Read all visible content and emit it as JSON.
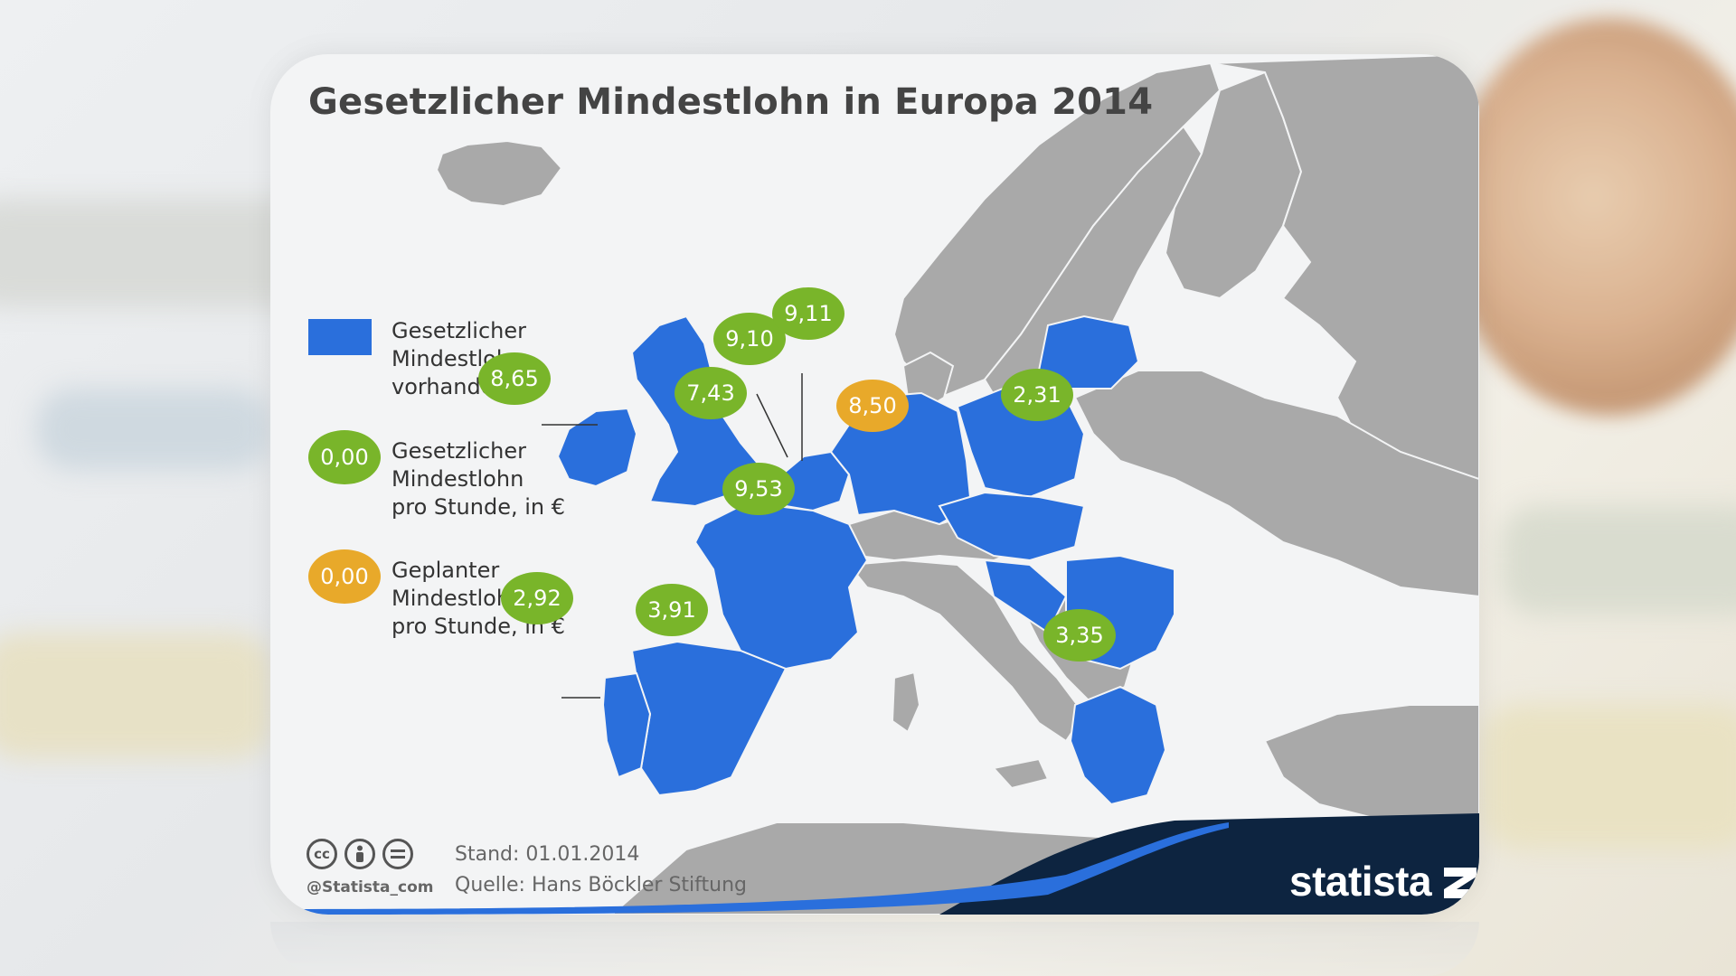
{
  "title": "Gesetzlicher Mindestlohn in Europa 2014",
  "legend": {
    "items": [
      {
        "kind": "swatch",
        "label": "Gesetzlicher\nMindestlohn\nvorhanden",
        "color": "#2a6fdc"
      },
      {
        "kind": "green",
        "sample": "0,00",
        "label": "Gesetzlicher\nMindestlohn\npro Stunde, in €",
        "color": "#79b52a"
      },
      {
        "kind": "orange",
        "sample": "0,00",
        "label": "Geplanter\nMindestlohn\npro Stunde, in €",
        "color": "#e8a92a"
      }
    ]
  },
  "wage_labels": [
    {
      "country": "Ireland",
      "value": "8,65",
      "status": "existing"
    },
    {
      "country": "United Kingdom",
      "value": "7,43",
      "status": "existing"
    },
    {
      "country": "Belgium",
      "value": "9,10",
      "status": "existing"
    },
    {
      "country": "Netherlands",
      "value": "9,11",
      "status": "existing"
    },
    {
      "country": "Germany",
      "value": "8,50",
      "status": "planned"
    },
    {
      "country": "Poland",
      "value": "2,31",
      "status": "existing"
    },
    {
      "country": "France",
      "value": "9,53",
      "status": "existing"
    },
    {
      "country": "Portugal",
      "value": "2,92",
      "status": "existing"
    },
    {
      "country": "Spain",
      "value": "3,91",
      "status": "existing"
    },
    {
      "country": "Greece",
      "value": "3,35",
      "status": "existing"
    }
  ],
  "footer": {
    "handle": "@Statista_com",
    "stand": "Stand: 01.01.2014",
    "source": "Quelle: Hans Böckler Stiftung",
    "brand": "statista",
    "license_icons": [
      "cc-icon",
      "by-icon",
      "nd-icon"
    ]
  },
  "colors": {
    "min_wage_country": "#2a6fdc",
    "other_country": "#a9a9a9",
    "existing_label": "#79b52a",
    "planned_label": "#e8a92a",
    "brand_bar": "#0d2440"
  }
}
